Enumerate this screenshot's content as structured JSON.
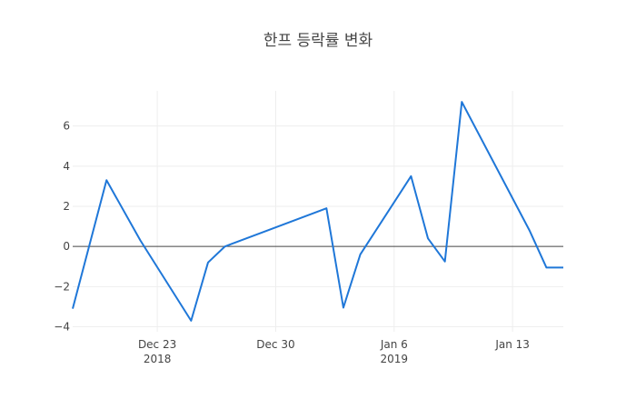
{
  "chart_data": {
    "type": "line",
    "title": "한프 등락률 변화",
    "xlabel": "",
    "ylabel": "",
    "x": [
      "2018-12-18",
      "2018-12-20",
      "2018-12-22",
      "2018-12-25",
      "2018-12-26",
      "2018-12-27",
      "2019-01-02",
      "2019-01-03",
      "2019-01-04",
      "2019-01-07",
      "2019-01-08",
      "2019-01-09",
      "2019-01-10",
      "2019-01-14",
      "2019-01-15",
      "2019-01-16"
    ],
    "series": [
      {
        "values": [
          -3.1,
          3.3,
          0.3,
          -3.7,
          -0.8,
          0.0,
          1.9,
          -3.05,
          -0.4,
          3.5,
          0.4,
          -0.75,
          7.2,
          0.8,
          -1.05,
          -1.05
        ],
        "color": "#1f77d8"
      }
    ],
    "x_range": [
      "2018-12-18",
      "2019-01-16"
    ],
    "ylim": [
      -4.25,
      7.75
    ],
    "y_ticks": [
      6,
      4,
      2,
      0,
      -2,
      -4
    ],
    "y_tick_labels": [
      "6",
      "4",
      "2",
      "0",
      "−2",
      "−4"
    ],
    "x_ticks": [
      {
        "date": "2018-12-23",
        "label": "Dec 23",
        "sublabel": "2018"
      },
      {
        "date": "2018-12-30",
        "label": "Dec 30",
        "sublabel": ""
      },
      {
        "date": "2019-01-06",
        "label": "Jan 6",
        "sublabel": "2019"
      },
      {
        "date": "2019-01-13",
        "label": "Jan 13",
        "sublabel": ""
      }
    ],
    "grid": true,
    "zero_line": true,
    "legend": "none"
  }
}
